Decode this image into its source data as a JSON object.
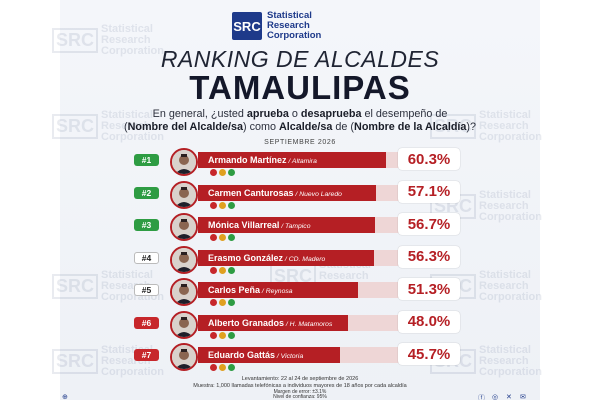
{
  "brand": {
    "logo_mark": "SRC",
    "name_lines": [
      "Statistical",
      "Research",
      "Corporation"
    ]
  },
  "title": {
    "line1": "RANKING DE ALCALDES",
    "line2": "TAMAULIPAS"
  },
  "question": {
    "p1": "En general, ¿usted ",
    "approve": "aprueba",
    "p2": " o ",
    "disapprove": "desaprueba",
    "p3": " el desempeño de",
    "p4": "(",
    "mayor_name": "Nombre del Alcalde/sa",
    "p5": ") como ",
    "mayor_role": "Alcalde/sa",
    "p6": " de (",
    "city": "Nombre de la Alcaldía",
    "p7": ")?"
  },
  "date": "SEPTIEMBRE 2026",
  "colors": {
    "bar": "#b51f24",
    "green": "#2e9c43",
    "navy": "#1e3a8a"
  },
  "chart_data": {
    "type": "bar",
    "orientation": "horizontal",
    "xlim": [
      0,
      100
    ],
    "categories": [
      "Armando Martínez",
      "Carmen Canturosas",
      "Mónica Villarreal",
      "Erasmo González",
      "Carlos Peña",
      "Alberto Granados",
      "Eduardo Gattás"
    ],
    "series": [
      {
        "values": [
          60.3,
          57.1,
          56.7,
          56.3,
          51.3,
          48.0,
          45.7
        ]
      }
    ]
  },
  "rows": [
    {
      "rank": "#1",
      "name": "Armando Martínez",
      "city": " / Altamira",
      "pct": "60.3%",
      "value": 60.3,
      "badge": "green"
    },
    {
      "rank": "#2",
      "name": "Carmen Canturosas",
      "city": " / Nuevo Laredo",
      "pct": "57.1%",
      "value": 57.1,
      "badge": "green"
    },
    {
      "rank": "#3",
      "name": "Mónica Villarreal",
      "city": " / Tampico",
      "pct": "56.7%",
      "value": 56.7,
      "badge": "green"
    },
    {
      "rank": "#4",
      "name": "Erasmo González",
      "city": " / CD. Madero",
      "pct": "56.3%",
      "value": 56.3,
      "badge": "white"
    },
    {
      "rank": "#5",
      "name": "Carlos Peña",
      "city": " / Reynosa",
      "pct": "51.3%",
      "value": 51.3,
      "badge": "white"
    },
    {
      "rank": "#6",
      "name": "Alberto Granados",
      "city": " / H. Matamoros",
      "pct": "48.0%",
      "value": 48.0,
      "badge": "red"
    },
    {
      "rank": "#7",
      "name": "Eduardo Gattás",
      "city": " / Victoria",
      "pct": "45.7%",
      "value": 45.7,
      "badge": "red"
    }
  ],
  "footer": {
    "line1": "Levantamiento: 22 al 24 de septiembre de 2026",
    "line2": "Muestra: 1,000 llamadas telefónicas a individuos mayores de 18 años por cada alcaldía",
    "line3": "Margen de error: ±3.1%",
    "line4": "Nivel de confianza: 95%"
  }
}
